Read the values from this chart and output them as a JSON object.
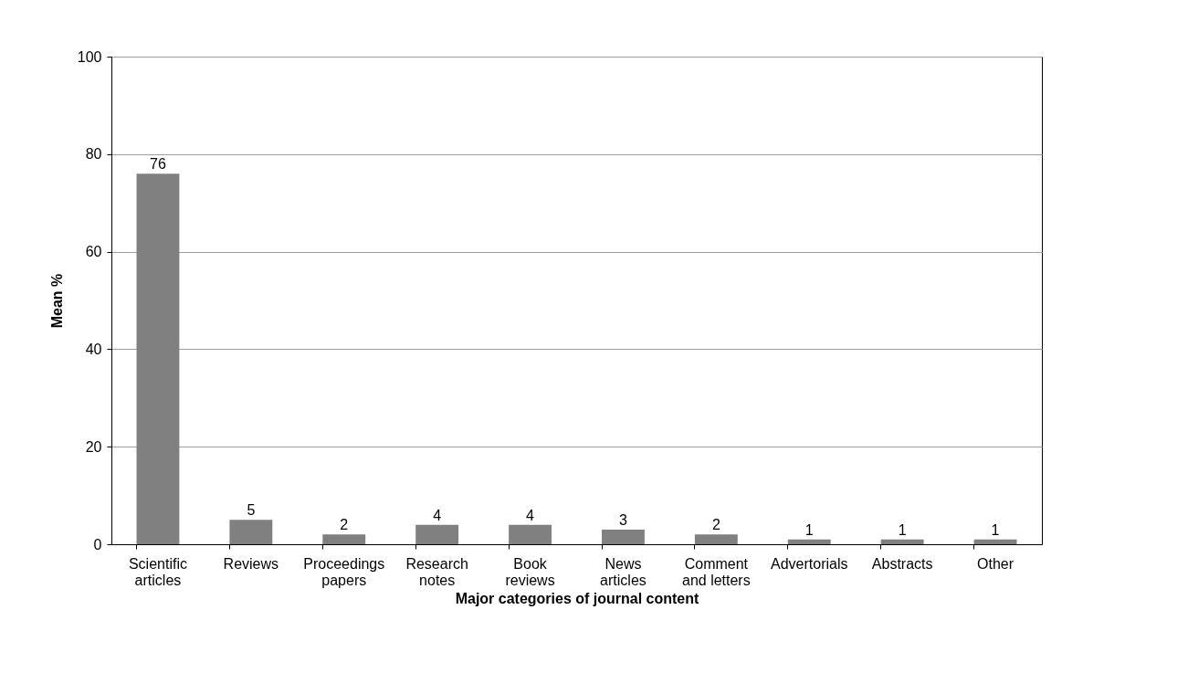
{
  "chart_data": {
    "type": "bar",
    "xlabel": "Major categories of journal content",
    "ylabel": "Mean %",
    "categories": [
      "Scientific articles",
      "Reviews",
      "Proceedings papers",
      "Research notes",
      "Book reviews",
      "News articles",
      "Comment and letters",
      "Advertorials",
      "Abstracts",
      "Other"
    ],
    "values": [
      76,
      5,
      2,
      4,
      4,
      3,
      2,
      1,
      1,
      1
    ],
    "color": "#808080",
    "ylim": [
      0,
      100
    ],
    "yticks": [
      0,
      20,
      40,
      60,
      80,
      100
    ],
    "grid": "y",
    "data_labels": true
  }
}
